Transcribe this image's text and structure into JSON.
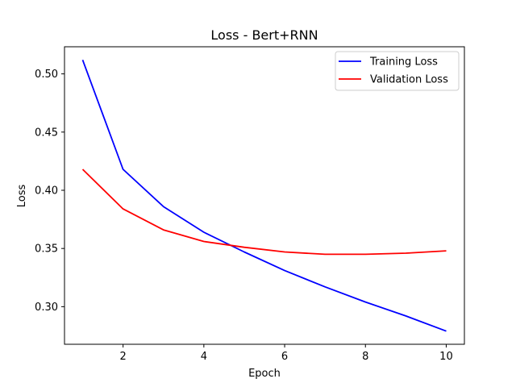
{
  "chart_data": {
    "type": "line",
    "title": "Loss - Bert+RNN",
    "xlabel": "Epoch",
    "ylabel": "Loss",
    "x": [
      1,
      2,
      3,
      4,
      5,
      6,
      7,
      8,
      9,
      10
    ],
    "series": [
      {
        "name": "Training Loss",
        "color": "#0000ff",
        "values": [
          0.512,
          0.418,
          0.386,
          0.364,
          0.347,
          0.331,
          0.317,
          0.304,
          0.292,
          0.279
        ]
      },
      {
        "name": "Validation Loss",
        "color": "#ff0000",
        "values": [
          0.418,
          0.384,
          0.366,
          0.356,
          0.351,
          0.347,
          0.345,
          0.345,
          0.346,
          0.348
        ]
      }
    ],
    "xlim": [
      0.55,
      10.45
    ],
    "ylim": [
      0.2677,
      0.5233
    ],
    "xticks": [
      2,
      4,
      6,
      8,
      10
    ],
    "xtick_labels": [
      "2",
      "4",
      "6",
      "8",
      "10"
    ],
    "yticks": [
      0.3,
      0.35,
      0.4,
      0.45,
      0.5
    ],
    "ytick_labels": [
      "0.30",
      "0.35",
      "0.40",
      "0.45",
      "0.50"
    ],
    "grid": false,
    "legend_position": "upper right"
  }
}
